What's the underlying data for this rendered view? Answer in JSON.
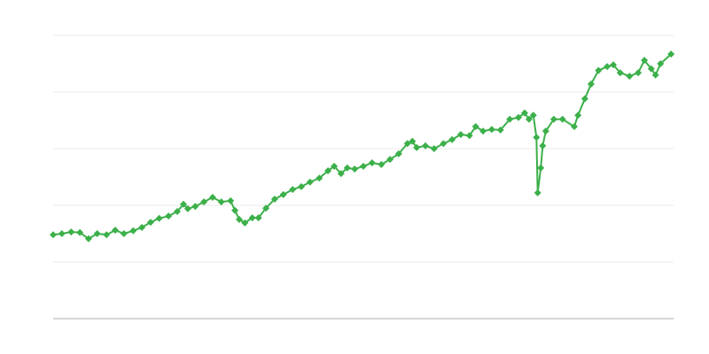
{
  "chart_data": {
    "type": "line",
    "title": "",
    "xlabel": "",
    "ylabel": "",
    "xlim": [
      0,
      100
    ],
    "ylim": [
      0,
      5
    ],
    "grid": true,
    "grid_axis": "y",
    "legend": "none",
    "marker": "diamond",
    "colors": {
      "series": "#3cb04a",
      "grid": "#ebebeb",
      "axis": "#aaaaaa"
    },
    "series": [
      {
        "x": [
          0,
          1.4,
          2.9,
          4.3,
          5.7,
          7.1,
          8.6,
          10,
          11.4,
          12.9,
          14.3,
          15.7,
          17.1,
          18.6,
          20,
          21,
          21.7,
          22.9,
          24.3,
          25.7,
          27.1,
          28.6,
          29.3,
          30,
          30.9,
          32.1,
          33.1,
          34.3,
          35.7,
          37.1,
          38.6,
          40,
          41.4,
          42.9,
          44.3,
          45.3,
          46.4,
          47.4,
          48.6,
          50,
          51.4,
          52.9,
          54.3,
          55.7,
          57.1,
          57.9,
          58.6,
          60,
          61.4,
          62.9,
          64.3,
          65.7,
          67.1,
          68.1,
          69.3,
          70.7,
          72.1,
          73.6,
          75,
          76,
          76.7,
          77.4,
          77.9,
          78.1,
          78.6,
          78.9,
          79.4,
          80.7,
          82.1,
          84,
          84.6,
          85.7,
          86.7,
          87.9,
          89.3,
          90.3,
          91.4,
          92.9,
          94.3,
          95.3,
          96.4,
          97.1,
          97.9,
          99.6
        ],
        "y": [
          1.48,
          1.5,
          1.53,
          1.52,
          1.41,
          1.5,
          1.48,
          1.56,
          1.5,
          1.55,
          1.61,
          1.7,
          1.77,
          1.81,
          1.89,
          2.02,
          1.94,
          1.98,
          2.06,
          2.14,
          2.06,
          2.08,
          1.91,
          1.75,
          1.69,
          1.78,
          1.78,
          1.95,
          2.11,
          2.19,
          2.28,
          2.33,
          2.41,
          2.48,
          2.61,
          2.69,
          2.56,
          2.66,
          2.64,
          2.69,
          2.75,
          2.72,
          2.81,
          2.91,
          3.09,
          3.13,
          3.02,
          3.05,
          3.0,
          3.09,
          3.16,
          3.25,
          3.23,
          3.39,
          3.31,
          3.34,
          3.33,
          3.52,
          3.55,
          3.63,
          3.52,
          3.59,
          3.2,
          2.22,
          2.66,
          3.05,
          3.31,
          3.52,
          3.52,
          3.39,
          3.59,
          3.88,
          4.14,
          4.38,
          4.45,
          4.48,
          4.34,
          4.28,
          4.34,
          4.56,
          4.41,
          4.3,
          4.5,
          4.67
        ]
      }
    ]
  }
}
